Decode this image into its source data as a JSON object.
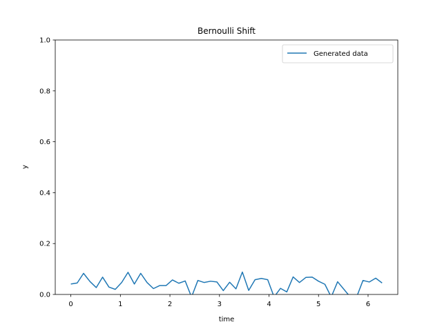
{
  "chart_data": {
    "type": "line",
    "title": "Bernoulli Shift",
    "xlabel": "time",
    "ylabel": "y",
    "xlim": [
      -0.315,
      6.6
    ],
    "ylim": [
      0,
      1
    ],
    "xticks": [
      0,
      1,
      2,
      3,
      4,
      5,
      6
    ],
    "yticks": [
      0.0,
      0.2,
      0.4,
      0.6,
      0.8,
      1.0
    ],
    "xtick_labels": [
      "0",
      "1",
      "2",
      "3",
      "4",
      "5",
      "6"
    ],
    "ytick_labels": [
      "0.0",
      "0.2",
      "0.4",
      "0.6",
      "0.8",
      "1.0"
    ],
    "grid": false,
    "legend_position": "top-right",
    "series": [
      {
        "name": "Generated data",
        "color": "#1f77b4",
        "x": [
          0.0,
          0.128,
          0.256,
          0.385,
          0.513,
          0.641,
          0.769,
          0.897,
          1.026,
          1.154,
          1.282,
          1.41,
          1.538,
          1.667,
          1.795,
          1.923,
          2.051,
          2.179,
          2.308,
          2.436,
          2.564,
          2.692,
          2.821,
          2.949,
          3.077,
          3.205,
          3.333,
          3.462,
          3.59,
          3.718,
          3.846,
          3.974,
          4.103,
          4.231,
          4.359,
          4.487,
          4.615,
          4.744,
          4.872,
          5.0,
          5.128,
          5.256,
          5.385,
          5.513,
          5.641,
          5.769,
          5.897,
          6.026,
          6.154,
          6.283
        ],
        "y": [
          0.041,
          0.045,
          0.083,
          0.051,
          0.027,
          0.068,
          0.029,
          0.02,
          0.047,
          0.087,
          0.041,
          0.083,
          0.047,
          0.023,
          0.035,
          0.035,
          0.057,
          0.044,
          0.053,
          -0.01,
          0.055,
          0.047,
          0.052,
          0.049,
          0.015,
          0.048,
          0.022,
          0.088,
          0.016,
          0.058,
          0.063,
          0.058,
          -0.01,
          0.024,
          0.01,
          0.069,
          0.047,
          0.067,
          0.068,
          0.052,
          0.04,
          -0.01,
          0.05,
          0.02,
          -0.01,
          -0.01,
          0.055,
          0.049,
          0.064,
          0.045
        ]
      }
    ]
  }
}
